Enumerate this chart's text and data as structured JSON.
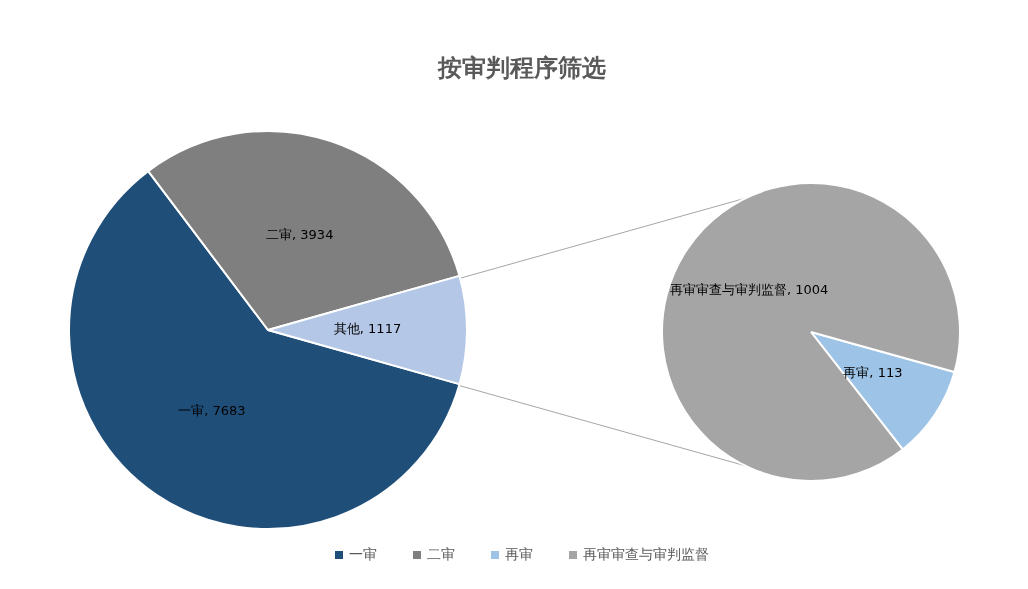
{
  "chart_data": [
    {
      "type": "pie",
      "title": "按审判程序筛选",
      "categories": [
        "一审",
        "二审",
        null
      ],
      "values": [
        7683,
        3934,
        1117
      ],
      "colors": [
        "#1f4e79",
        "#7f7f7f",
        "#b4c7e7"
      ],
      "value_labels": [
        "一审, 7683",
        "二审, 3934",
        "其他, 1117"
      ],
      "legend": "bottom"
    },
    {
      "type": "pie",
      "categories": [
        "再审",
        "再审审查与审判监督"
      ],
      "values": [
        113,
        1004
      ],
      "colors": [
        "#9dc3e6",
        "#a5a5a5"
      ],
      "value_labels": [
        "再审, 113",
        "再审审查与审判监督, 1004"
      ],
      "legend": "bottom"
    }
  ]
}
